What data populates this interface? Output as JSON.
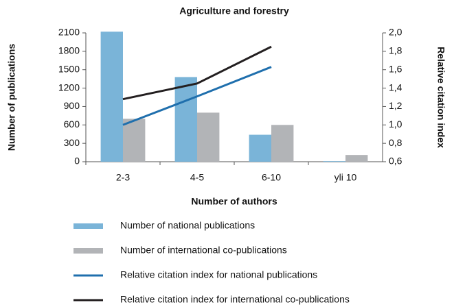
{
  "chart_data": {
    "type": "bar",
    "title": "Agriculture and forestry",
    "x_label": "Number of authors",
    "y_label": "Number of publications",
    "y2_label": "Relative citation index",
    "categories": [
      "2-3",
      "4-5",
      "6-10",
      "yli 10"
    ],
    "series": [
      {
        "name": "Number of national publications",
        "type": "bar",
        "color": "#7ab4d8",
        "values": [
          2120,
          1380,
          440,
          10
        ]
      },
      {
        "name": "Number of international co-publications",
        "type": "bar",
        "color": "#b2b4b7",
        "values": [
          700,
          800,
          600,
          110
        ]
      },
      {
        "name": "Relative citation index for national publications",
        "type": "line",
        "axis": "y2",
        "color": "#1f6fad",
        "values": [
          1.0,
          1.31,
          1.63,
          null
        ]
      },
      {
        "name": "Relative citation index for international co-publications",
        "type": "line",
        "axis": "y2",
        "color": "#231f20",
        "values": [
          1.28,
          1.45,
          1.85,
          null
        ]
      }
    ],
    "ylim": [
      0,
      2100
    ],
    "yticks": [
      0,
      300,
      600,
      900,
      1200,
      1500,
      1800,
      2100
    ],
    "y2lim": [
      0.6,
      2.0
    ],
    "y2ticks": [
      {
        "value": 0.6,
        "label": "0,6"
      },
      {
        "value": 0.8,
        "label": "0,8"
      },
      {
        "value": 1.0,
        "label": "1,0"
      },
      {
        "value": 1.2,
        "label": "1,2"
      },
      {
        "value": 1.4,
        "label": "1,4"
      },
      {
        "value": 1.6,
        "label": "1,6"
      },
      {
        "value": 1.8,
        "label": "1,8"
      },
      {
        "value": 2.0,
        "label": "2,0"
      }
    ],
    "grid": false,
    "legend": "bottom"
  }
}
